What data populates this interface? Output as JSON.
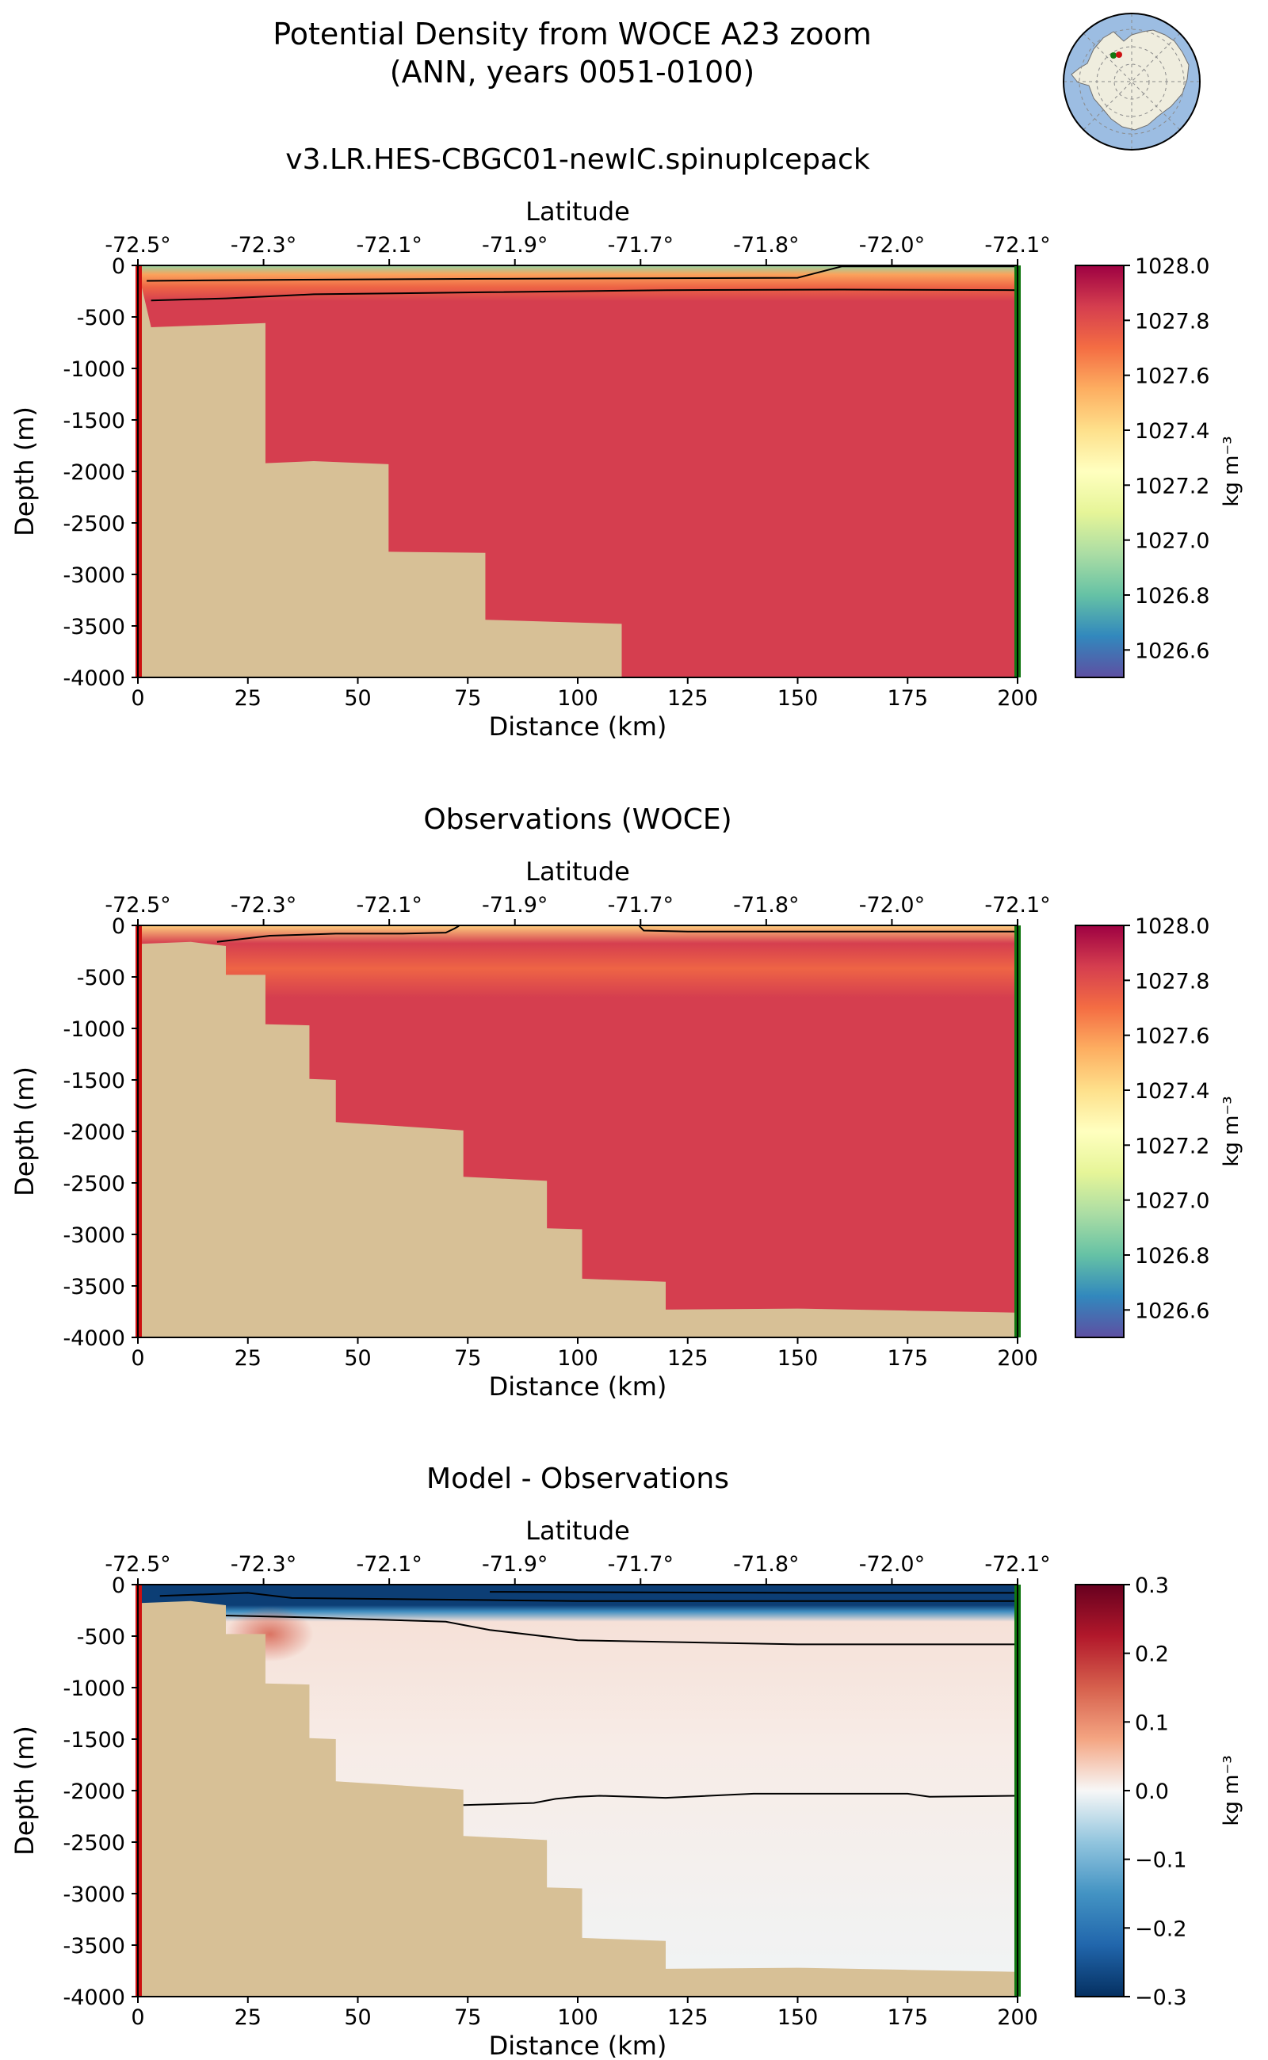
{
  "figure": {
    "title_line1": "Potential Density from WOCE A23 zoom",
    "title_line2": "(ANN, years 0051-0100)"
  },
  "colors": {
    "land": "#d7c096",
    "contour": "#000000",
    "section_start_marker": "#cc1111",
    "section_end_marker": "#117711",
    "map_ocean": "#9cbde2",
    "map_land": "#efedde",
    "density_palette": "Spectral_r",
    "difference_palette": "RdBu_r"
  },
  "chart_data": [
    {
      "type": "heatmap",
      "id": "model",
      "title": "v3.LR.HES-CBGC01-newIC.spinupIcepack",
      "xlabel": "Distance (km)",
      "ylabel": "Depth (m)",
      "top_axis_label": "Latitude",
      "top_ticks": [
        "-72.5°",
        "-72.3°",
        "-72.1°",
        "-71.9°",
        "-71.7°",
        "-71.8°",
        "-72.0°",
        "-72.1°"
      ],
      "x_ticks": [
        0,
        25,
        50,
        75,
        100,
        125,
        150,
        175,
        200
      ],
      "y_ticks": [
        0,
        -500,
        -1000,
        -1500,
        -2000,
        -2500,
        -3000,
        -3500,
        -4000
      ],
      "xlim": [
        0,
        200
      ],
      "ylim": [
        -4000,
        0
      ],
      "colorbar": {
        "label": "kg m⁻³",
        "min": 1026.5,
        "max": 1028.0,
        "ticks": [
          "1028.0",
          "1027.8",
          "1027.6",
          "1027.4",
          "1027.2",
          "1027.0",
          "1026.8",
          "1026.6"
        ]
      },
      "field": {
        "surface": 1026.9,
        "deep": 1027.85,
        "transition_top_m": 0,
        "transition_bottom_m": -350,
        "inshore_surface": 1027.6
      },
      "bathymetry": [
        [
          0,
          -50
        ],
        [
          3,
          -600
        ],
        [
          29,
          -560
        ],
        [
          29,
          -1920
        ],
        [
          40,
          -1900
        ],
        [
          57,
          -1930
        ],
        [
          57,
          -2780
        ],
        [
          79,
          -2790
        ],
        [
          79,
          -3440
        ],
        [
          110,
          -3480
        ],
        [
          110,
          -4000
        ]
      ],
      "contours": [
        [
          [
            2,
            -150
          ],
          [
            30,
            -140
          ],
          [
            80,
            -130
          ],
          [
            150,
            -120
          ],
          [
            160,
            -10
          ],
          [
            200,
            -10
          ]
        ],
        [
          [
            3,
            -340
          ],
          [
            20,
            -320
          ],
          [
            40,
            -280
          ],
          [
            80,
            -260
          ],
          [
            120,
            -240
          ],
          [
            160,
            -235
          ],
          [
            200,
            -240
          ]
        ]
      ]
    },
    {
      "type": "heatmap",
      "id": "observations",
      "title": "Observations (WOCE)",
      "xlabel": "Distance (km)",
      "ylabel": "Depth (m)",
      "top_axis_label": "Latitude",
      "top_ticks": [
        "-72.5°",
        "-72.3°",
        "-72.1°",
        "-71.9°",
        "-71.7°",
        "-71.8°",
        "-72.0°",
        "-72.1°"
      ],
      "x_ticks": [
        0,
        25,
        50,
        75,
        100,
        125,
        150,
        175,
        200
      ],
      "y_ticks": [
        0,
        -500,
        -1000,
        -1500,
        -2000,
        -2500,
        -3000,
        -3500,
        -4000
      ],
      "xlim": [
        0,
        200
      ],
      "ylim": [
        -4000,
        0
      ],
      "colorbar": {
        "label": "kg m⁻³",
        "min": 1026.5,
        "max": 1028.0,
        "ticks": [
          "1028.0",
          "1027.8",
          "1027.6",
          "1027.4",
          "1027.2",
          "1027.0",
          "1026.8",
          "1026.6"
        ]
      },
      "field": {
        "surface": 1027.45,
        "deep": 1027.85,
        "transition_top_m": 0,
        "transition_bottom_m": -700,
        "inshore_surface": 1027.3
      },
      "bathymetry": [
        [
          0,
          -180
        ],
        [
          12,
          -160
        ],
        [
          20,
          -200
        ],
        [
          20,
          -480
        ],
        [
          29,
          -480
        ],
        [
          29,
          -960
        ],
        [
          39,
          -970
        ],
        [
          39,
          -1490
        ],
        [
          45,
          -1500
        ],
        [
          45,
          -1910
        ],
        [
          60,
          -1950
        ],
        [
          74,
          -1990
        ],
        [
          74,
          -2440
        ],
        [
          93,
          -2480
        ],
        [
          93,
          -2940
        ],
        [
          101,
          -2950
        ],
        [
          101,
          -3430
        ],
        [
          120,
          -3460
        ],
        [
          120,
          -3730
        ],
        [
          150,
          -3720
        ],
        [
          175,
          -3740
        ],
        [
          200,
          -3760
        ],
        [
          200,
          -4000
        ]
      ],
      "contours": [
        [
          [
            18,
            -160
          ],
          [
            30,
            -100
          ],
          [
            45,
            -80
          ],
          [
            60,
            -80
          ],
          [
            70,
            -70
          ],
          [
            72,
            -30
          ],
          [
            73,
            -5
          ]
        ],
        [
          [
            114,
            -5
          ],
          [
            115,
            -50
          ],
          [
            125,
            -60
          ],
          [
            150,
            -60
          ],
          [
            200,
            -60
          ]
        ]
      ]
    },
    {
      "type": "heatmap",
      "id": "difference",
      "title": "Model - Observations",
      "xlabel": "Distance (km)",
      "ylabel": "Depth (m)",
      "top_axis_label": "Latitude",
      "top_ticks": [
        "-72.5°",
        "-72.3°",
        "-72.1°",
        "-71.9°",
        "-71.7°",
        "-71.8°",
        "-72.0°",
        "-72.1°"
      ],
      "x_ticks": [
        0,
        25,
        50,
        75,
        100,
        125,
        150,
        175,
        200
      ],
      "y_ticks": [
        0,
        -500,
        -1000,
        -1500,
        -2000,
        -2500,
        -3000,
        -3500,
        -4000
      ],
      "xlim": [
        0,
        200
      ],
      "ylim": [
        -4000,
        0
      ],
      "colorbar": {
        "label": "kg m⁻³",
        "min": -0.3,
        "max": 0.3,
        "ticks": [
          "0.3",
          "0.2",
          "0.1",
          "0.0",
          "−0.1",
          "−0.2",
          "−0.3"
        ]
      },
      "field": {
        "surface": -0.28,
        "shallow": -0.16,
        "mid": 0.02,
        "deep": -0.005,
        "warm_blob": 0.13
      },
      "bathymetry": [
        [
          0,
          -180
        ],
        [
          12,
          -160
        ],
        [
          20,
          -200
        ],
        [
          20,
          -480
        ],
        [
          29,
          -480
        ],
        [
          29,
          -960
        ],
        [
          39,
          -970
        ],
        [
          39,
          -1490
        ],
        [
          45,
          -1500
        ],
        [
          45,
          -1910
        ],
        [
          60,
          -1950
        ],
        [
          74,
          -1990
        ],
        [
          74,
          -2440
        ],
        [
          93,
          -2480
        ],
        [
          93,
          -2940
        ],
        [
          101,
          -2950
        ],
        [
          101,
          -3430
        ],
        [
          120,
          -3460
        ],
        [
          120,
          -3730
        ],
        [
          150,
          -3720
        ],
        [
          175,
          -3740
        ],
        [
          200,
          -3760
        ],
        [
          200,
          -4000
        ]
      ],
      "contours": [
        [
          [
            5,
            -110
          ],
          [
            25,
            -80
          ],
          [
            35,
            -130
          ],
          [
            80,
            -150
          ],
          [
            100,
            -160
          ],
          [
            200,
            -160
          ]
        ],
        [
          [
            80,
            -70
          ],
          [
            150,
            -80
          ],
          [
            200,
            -80
          ]
        ],
        [
          [
            20,
            -300
          ],
          [
            40,
            -320
          ],
          [
            70,
            -360
          ],
          [
            80,
            -440
          ],
          [
            100,
            -540
          ],
          [
            150,
            -580
          ],
          [
            200,
            -580
          ]
        ],
        [
          [
            74,
            -2140
          ],
          [
            90,
            -2120
          ],
          [
            95,
            -2080
          ],
          [
            100,
            -2060
          ],
          [
            105,
            -2050
          ],
          [
            120,
            -2070
          ],
          [
            140,
            -2030
          ],
          [
            175,
            -2030
          ],
          [
            180,
            -2060
          ],
          [
            200,
            -2050
          ]
        ]
      ]
    }
  ]
}
